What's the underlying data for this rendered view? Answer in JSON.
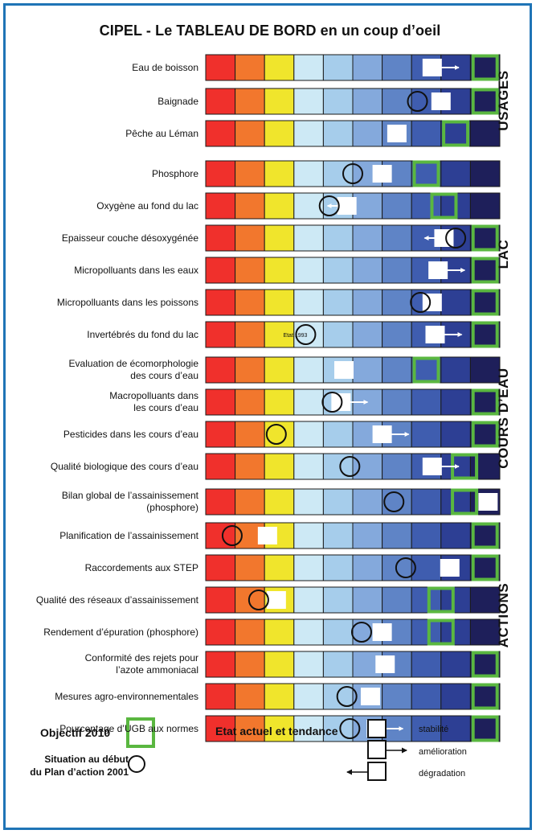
{
  "title": "CIPEL -  Le TABLEAU DE BORD en un coup d’oeil",
  "scale_colors": [
    "#f0302c",
    "#f2772d",
    "#f0e52c",
    "#cde9f5",
    "#a6cdeb",
    "#84a9dc",
    "#5f84c6",
    "#3f5daf",
    "#2d3f94",
    "#1e1f5a"
  ],
  "objective_color": "#5ab740",
  "sections": [
    {
      "name": "USAGES",
      "rows": [
        {
          "label": [
            "Eau de boisson"
          ],
          "objective": 9,
          "current": 7.2,
          "trend": "improve"
        },
        {
          "label": [
            "Baignade"
          ],
          "objective": 9,
          "initial": 6.7,
          "current": 7.5
        },
        {
          "label": [
            "Pêche au Léman"
          ],
          "objective": 8,
          "current": 6
        }
      ]
    },
    {
      "name": "LAC",
      "rows": [
        {
          "label": [
            "Phosphore"
          ],
          "objective": 7,
          "initial": 4.5,
          "current": 5.5
        },
        {
          "label": [
            "Oxygène au fond du lac"
          ],
          "objective": 7.6,
          "initial": 3.7,
          "current": 4.3,
          "trend": "degrade"
        },
        {
          "label": [
            "Epaisseur couche désoxygénée"
          ],
          "objective": 9,
          "initial": 8,
          "current": 7.6,
          "trend": "degrade"
        },
        {
          "label": [
            "Micropolluants dans les eaux"
          ],
          "objective": 9,
          "current": 7.4,
          "trend": "improve"
        },
        {
          "label": [
            "Micropolluants dans les poissons"
          ],
          "objective": 9,
          "initial": 6.8,
          "current": 7.2
        },
        {
          "label": [
            "Invertébrés du fond du lac"
          ],
          "objective": 9,
          "initial": 2.9,
          "initial_note": "Etat 1993",
          "current": 7.3,
          "trend": "improve"
        }
      ]
    },
    {
      "name": "COURS D’EAU",
      "rows": [
        {
          "label": [
            "Evaluation de écomorphologie",
            "des cours d’eau"
          ],
          "objective": 7,
          "current": 4.2
        },
        {
          "label": [
            "Macropolluants dans",
            "les cours d’eau"
          ],
          "objective": 9,
          "initial": 3.8,
          "current": 4.1,
          "trend": "improve"
        },
        {
          "label": [
            "Pesticides dans les cours d’eau"
          ],
          "objective": 9,
          "initial": 1.9,
          "current": 5.5,
          "trend": "improve"
        },
        {
          "label": [
            "Qualité biologique des cours d’eau"
          ],
          "objective": 8.3,
          "initial": 4.4,
          "current": 7.2,
          "trend": "improve"
        }
      ]
    },
    {
      "name": "ACTIONS",
      "rows": [
        {
          "label": [
            "Bilan global de l’assainissement",
            "(phosphore)"
          ],
          "objective": 8.3,
          "initial": 5.9,
          "current": 9.1
        },
        {
          "label": [
            "Planification de l’assainissement"
          ],
          "objective": 9,
          "initial": 0.4,
          "current": 1.6
        },
        {
          "label": [
            "Raccordements aux STEP"
          ],
          "objective": 9,
          "initial": 6.3,
          "current": 7.8
        },
        {
          "label": [
            "Qualité des réseaux d’assainissement"
          ],
          "objective": 7.5,
          "initial": 1.3,
          "current": 1.9
        },
        {
          "label": [
            "Rendement d’épuration (phosphore)"
          ],
          "objective": 7.5,
          "initial": 4.8,
          "current": 5.5
        },
        {
          "label": [
            "Conformité des rejets pour",
            "l’azote ammoniacal"
          ],
          "objective": 9,
          "current": 5.6
        },
        {
          "label": [
            "Mesures agro-environnementales"
          ],
          "objective": 9,
          "initial": 4.3,
          "current": 5.1
        },
        {
          "label": [
            "Pourcentage d’UGB aux normes"
          ],
          "objective": 9,
          "initial": 4.4,
          "current": 5.3,
          "trend": "improve"
        }
      ]
    }
  ],
  "legend": {
    "objective": "Objectif 2010",
    "initial": [
      "Situation au début",
      "du Plan d’action 2001"
    ],
    "current": "Etat actuel et tendance",
    "stability": "stabilité",
    "improvement": "amélioration",
    "degradation": "dégradation"
  }
}
